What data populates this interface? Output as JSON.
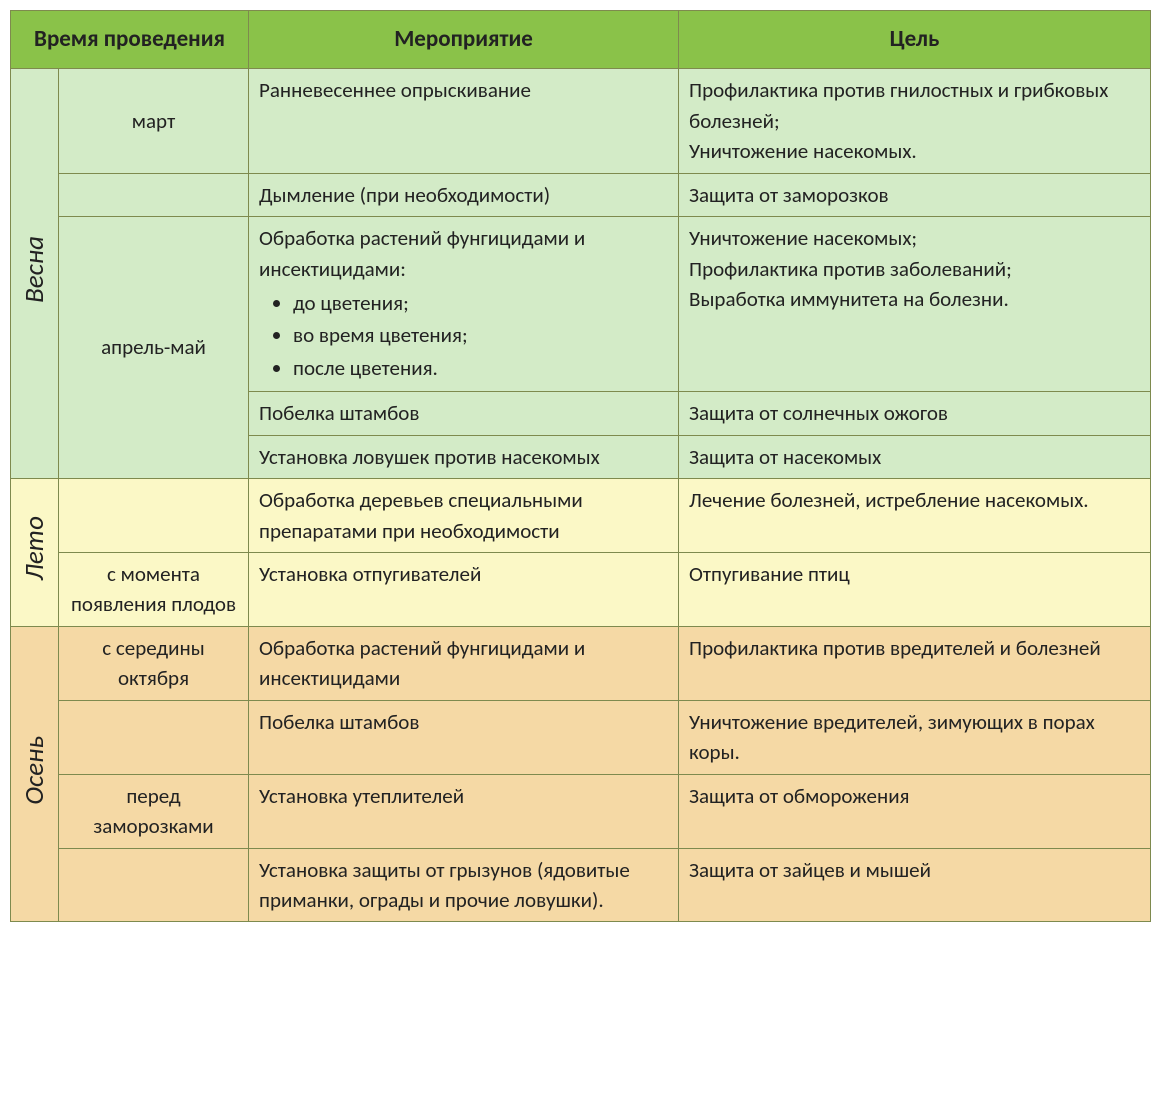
{
  "colors": {
    "header_bg": "#8ac249",
    "border": "#7e8a4e",
    "spring_bg": "#d3ebc7",
    "summer_bg": "#fbf8c6",
    "autumn_bg": "#f5d9a5",
    "text": "#222222"
  },
  "columns": {
    "time": "Время проведения",
    "event": "Мероприятие",
    "goal": "Цель"
  },
  "seasons": {
    "spring": {
      "label": "Весна",
      "rows": [
        {
          "month": "март",
          "event": "Ранневесеннее опрыскивание",
          "goal": "Профилактика против гнилостных и грибковых болезней;\nУничтожение насекомых."
        },
        {
          "month": "",
          "event": "Дымление (при необходимости)",
          "goal": "Защита от заморозков"
        },
        {
          "month": "апрель-май",
          "month_rowspan": 3,
          "event_intro": "Обработка растений фунгицидами и инсектицидами:",
          "event_bullets": [
            "до цветения;",
            "во время цветения;",
            "после цветения."
          ],
          "goal": "Уничтожение насекомых;\nПрофилактика против заболеваний;\nВыработка иммунитета на болезни."
        },
        {
          "event": "Побелка штамбов",
          "goal": "Защита от солнечных ожогов"
        },
        {
          "event": "Установка ловушек против насекомых",
          "goal": "Защита от насекомых"
        }
      ]
    },
    "summer": {
      "label": "Лето",
      "rows": [
        {
          "month": "",
          "event": "Обработка деревьев специальными препаратами при необходимости",
          "goal": "Лечение болезней, истребление насекомых."
        },
        {
          "month": "с момента появления плодов",
          "event": "Установка отпугивателей",
          "goal": "Отпугивание птиц"
        }
      ]
    },
    "autumn": {
      "label": "Осень",
      "rows": [
        {
          "month": "с середины октября",
          "event": "Обработка растений фунгицидами и инсектицидами",
          "goal": "Профилактика против вредителей и болезней"
        },
        {
          "month": "",
          "event": "Побелка штамбов",
          "goal": "Уничтожение вредителей, зимующих в порах коры."
        },
        {
          "month": "перед заморозками",
          "event": "Установка утеплителей",
          "goal": "Защита от обморожения"
        },
        {
          "month": "",
          "event": "Установка защиты от грызунов (ядовитые приманки, ограды и прочие ловушки).",
          "goal": "Защита от зайцев и мышей"
        }
      ]
    }
  }
}
